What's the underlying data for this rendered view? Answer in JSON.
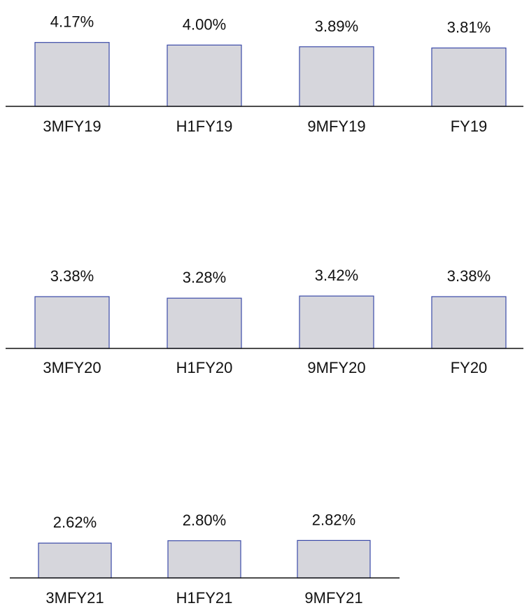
{
  "chart_data": [
    {
      "type": "bar",
      "categories": [
        "3MFY19",
        "H1FY19",
        "9MFY19",
        "FY19"
      ],
      "values": [
        4.17,
        4.0,
        3.89,
        3.81
      ],
      "value_labels": [
        "4.17%",
        "4.00%",
        "3.89%",
        "3.81%"
      ],
      "bar_color": "#d6d6dc",
      "bar_edge_color": "#3b4aa8",
      "grid": false
    },
    {
      "type": "bar",
      "categories": [
        "3MFY20",
        "H1FY20",
        "9MFY20",
        "FY20"
      ],
      "values": [
        3.38,
        3.28,
        3.42,
        3.38
      ],
      "value_labels": [
        "3.38%",
        "3.28%",
        "3.42%",
        "3.38%"
      ],
      "bar_color": "#d6d6dc",
      "bar_edge_color": "#3b4aa8",
      "grid": false
    },
    {
      "type": "bar",
      "categories": [
        "3MFY21",
        "H1FY21",
        "9MFY21"
      ],
      "values": [
        2.62,
        2.8,
        2.82
      ],
      "value_labels": [
        "2.62%",
        "2.80%",
        "2.82%"
      ],
      "bar_color": "#d6d6dc",
      "bar_edge_color": "#3b4aa8",
      "grid": false
    }
  ]
}
